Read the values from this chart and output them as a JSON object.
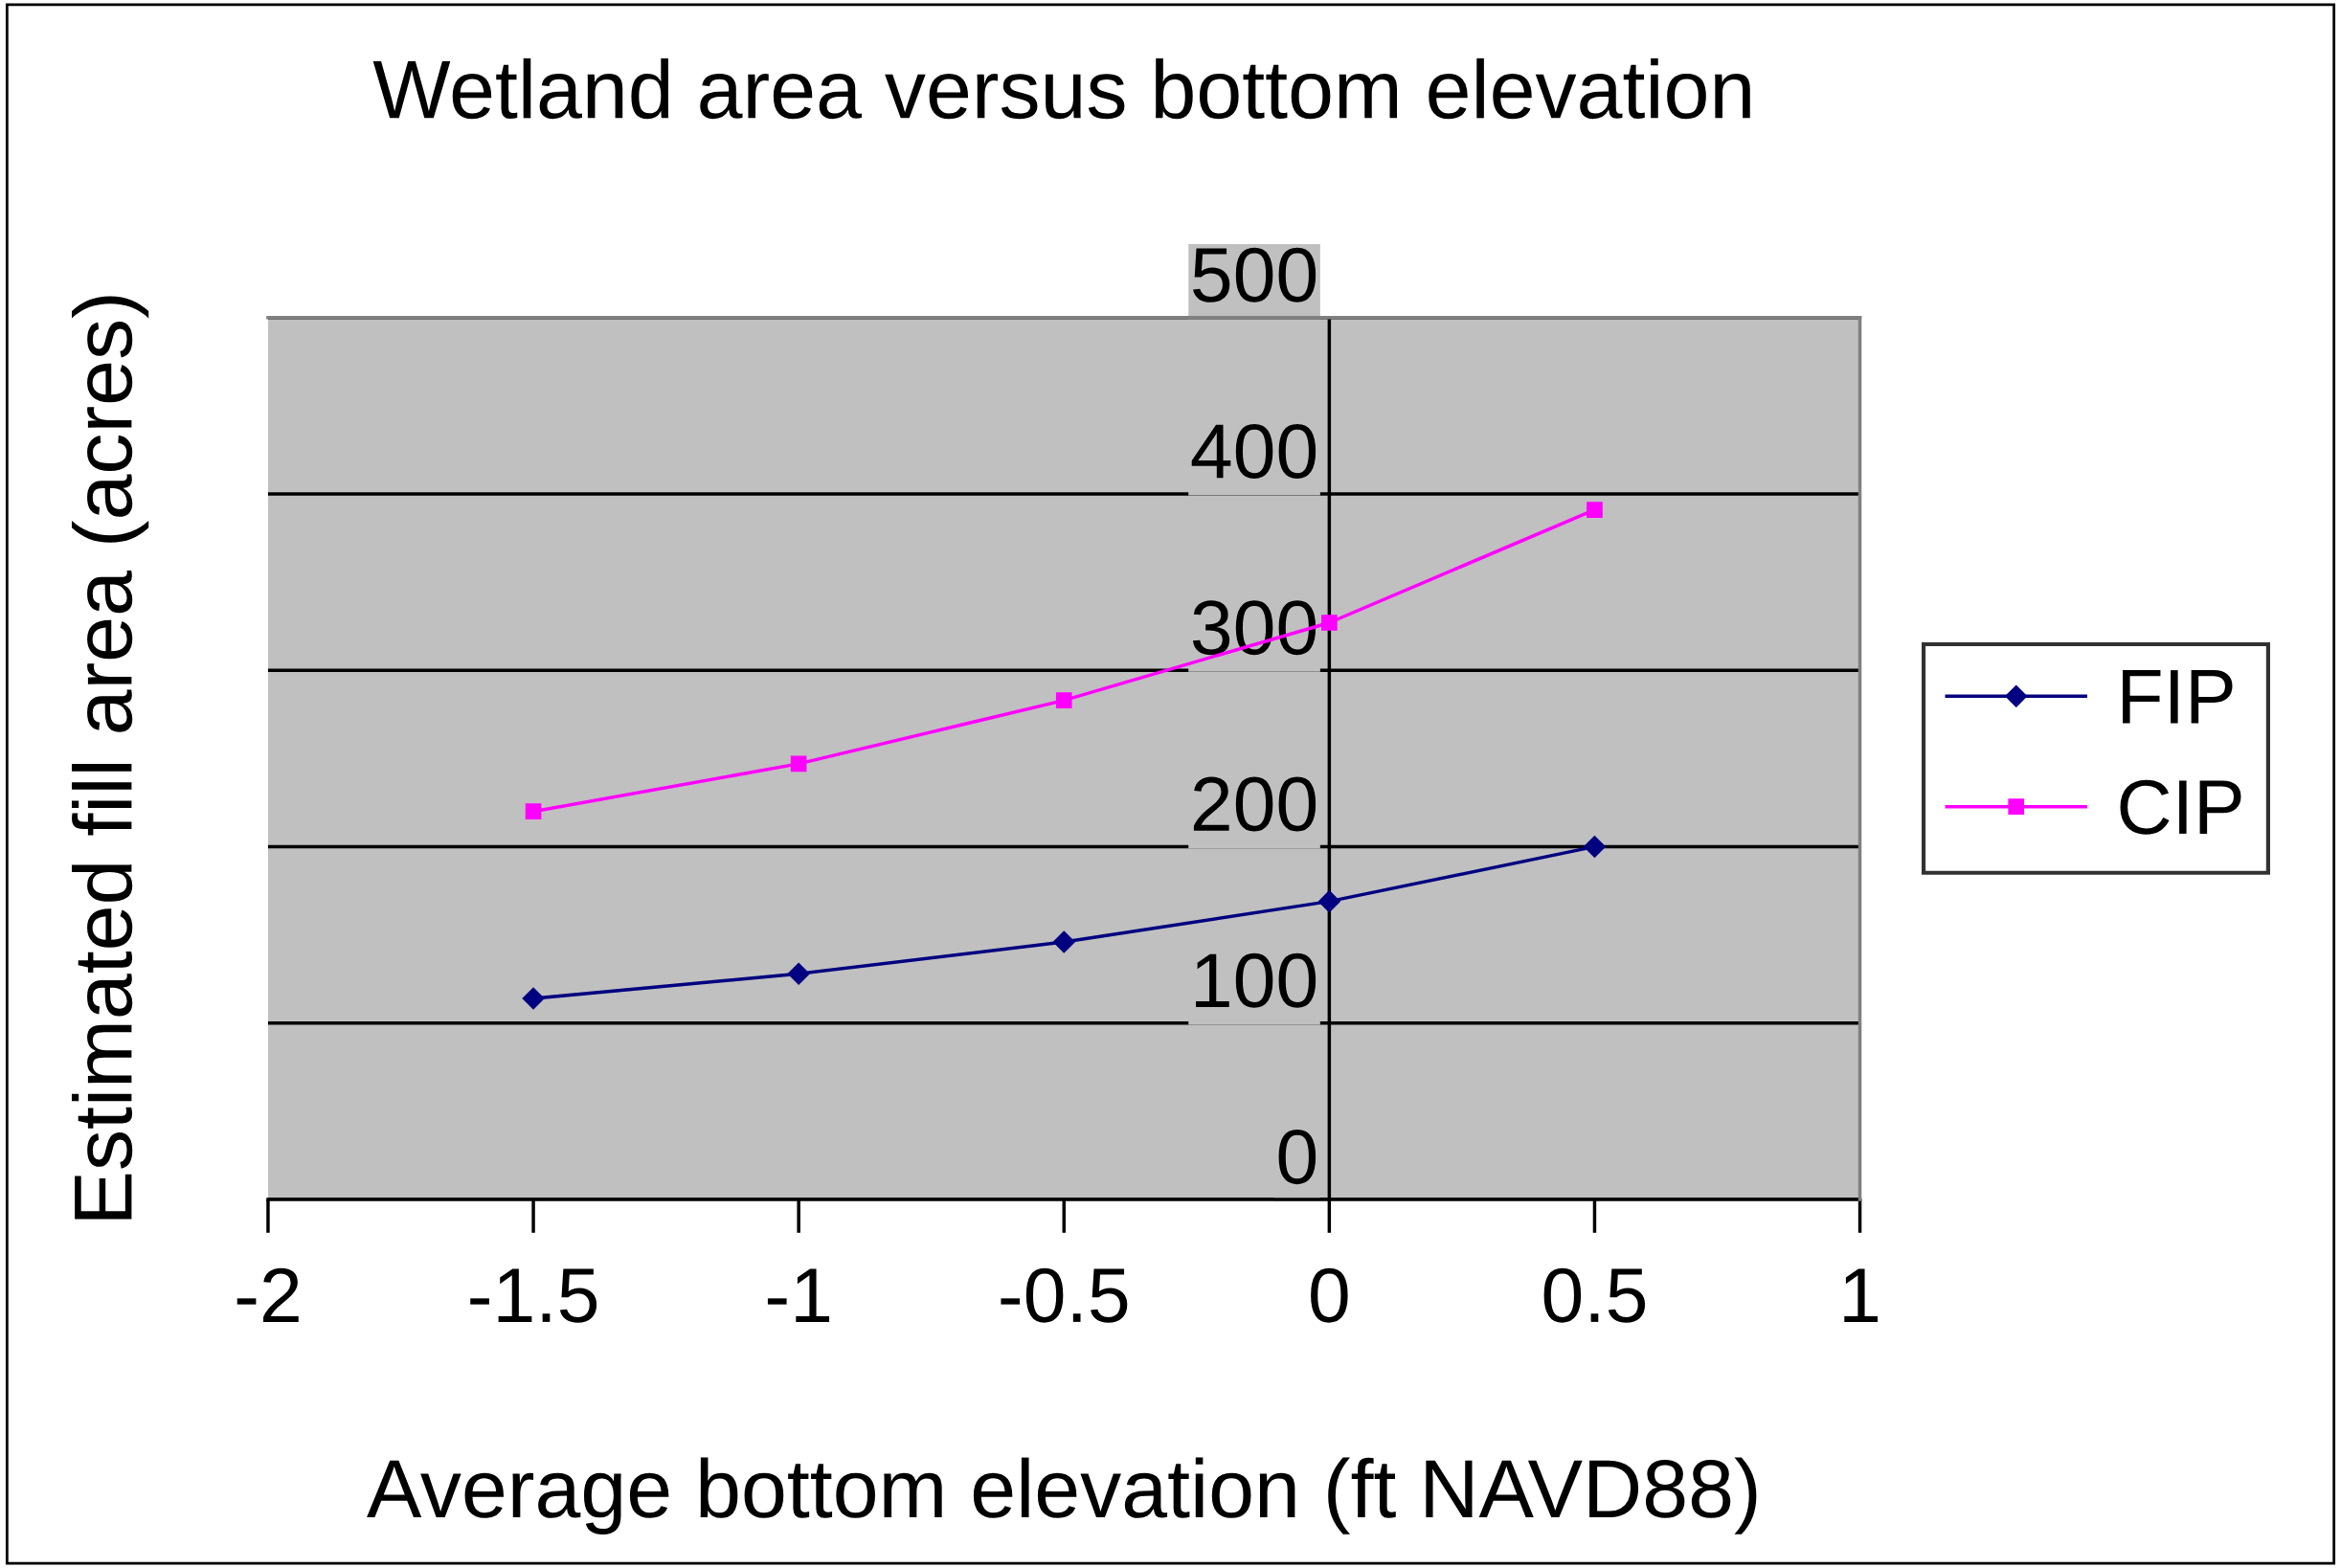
{
  "chart_data": {
    "type": "line",
    "title": "Wetland area versus bottom elevation",
    "xlabel": "Average bottom elevation (ft NAVD88)",
    "ylabel": "Estimated fill area (acres)",
    "x": [
      -1.5,
      -1,
      -0.5,
      0,
      0.5
    ],
    "series": [
      {
        "name": "FIP",
        "color": "#000080",
        "marker": "diamond",
        "values": [
          114,
          128,
          146,
          169,
          200
        ]
      },
      {
        "name": "CIP",
        "color": "#ff00ff",
        "marker": "square",
        "values": [
          220,
          247,
          283,
          327,
          391
        ]
      }
    ],
    "xlim": [
      -2,
      1
    ],
    "xticks": [
      -2,
      -1.5,
      -1,
      -0.5,
      0,
      0.5,
      1
    ],
    "ylim": [
      0,
      500
    ],
    "yticks": [
      0,
      100,
      200,
      300,
      400,
      500
    ],
    "grid": "y",
    "legend": "right",
    "line_style": "solid"
  }
}
